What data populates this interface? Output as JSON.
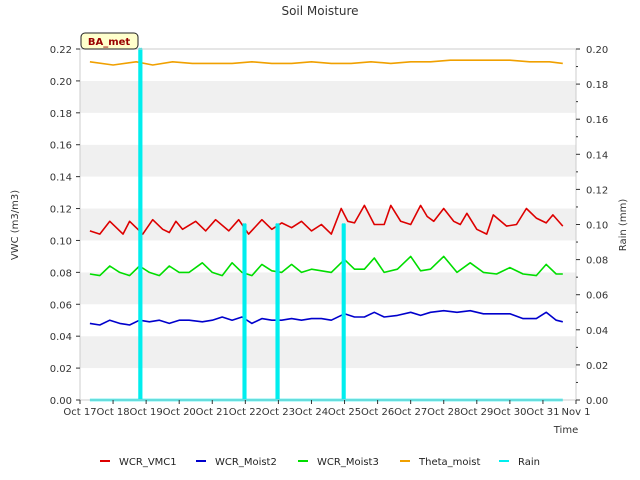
{
  "chart_data": {
    "type": "line",
    "title": "Soil Moisture",
    "badge": "BA_met",
    "xlabel": "Time",
    "ylabel": "VWC (m3/m3)",
    "y2label": "Rain (mm)",
    "x_ticks": [
      "Oct 17",
      "Oct 18",
      "Oct 19",
      "Oct 20",
      "Oct 21",
      "Oct 22",
      "Oct 23",
      "Oct 24",
      "Oct 25",
      "Oct 26",
      "Oct 27",
      "Oct 28",
      "Oct 29",
      "Oct 30",
      "Oct 31",
      "Nov 1"
    ],
    "x_range_days": [
      0,
      15
    ],
    "ylim": [
      0,
      0.22
    ],
    "y_ticks": [
      "0.00",
      "0.02",
      "0.04",
      "0.06",
      "0.08",
      "0.10",
      "0.12",
      "0.14",
      "0.16",
      "0.18",
      "0.20",
      "0.22"
    ],
    "y2lim": [
      0,
      0.2
    ],
    "y2_ticks": [
      "0.00",
      "0.02",
      "0.04",
      "0.06",
      "0.08",
      "0.10",
      "0.12",
      "0.14",
      "0.16",
      "0.18",
      "0.20"
    ],
    "grid": "horizontal bands",
    "legend_position": "bottom",
    "series": [
      {
        "name": "WCR_VMC1",
        "axis": "left",
        "color": "#dd0000",
        "x": [
          0.3,
          0.6,
          0.9,
          1.1,
          1.3,
          1.5,
          1.7,
          1.9,
          2.2,
          2.5,
          2.7,
          2.9,
          3.1,
          3.5,
          3.8,
          4.1,
          4.5,
          4.8,
          5.1,
          5.5,
          5.8,
          6.1,
          6.4,
          6.7,
          7.0,
          7.3,
          7.6,
          7.9,
          8.1,
          8.3,
          8.6,
          8.9,
          9.2,
          9.4,
          9.7,
          10.0,
          10.3,
          10.5,
          10.7,
          11.0,
          11.3,
          11.5,
          11.7,
          12.0,
          12.3,
          12.5,
          12.9,
          13.2,
          13.5,
          13.8,
          14.1,
          14.3,
          14.6
        ],
        "y": [
          0.106,
          0.104,
          0.112,
          0.108,
          0.104,
          0.112,
          0.108,
          0.104,
          0.113,
          0.107,
          0.105,
          0.112,
          0.107,
          0.112,
          0.106,
          0.113,
          0.106,
          0.113,
          0.104,
          0.113,
          0.107,
          0.111,
          0.108,
          0.112,
          0.106,
          0.11,
          0.104,
          0.12,
          0.112,
          0.111,
          0.122,
          0.11,
          0.11,
          0.122,
          0.112,
          0.11,
          0.122,
          0.115,
          0.112,
          0.12,
          0.112,
          0.11,
          0.117,
          0.107,
          0.104,
          0.116,
          0.109,
          0.11,
          0.12,
          0.114,
          0.111,
          0.116,
          0.109
        ]
      },
      {
        "name": "WCR_Moist2",
        "axis": "left",
        "color": "#0000cc",
        "x": [
          0.3,
          0.6,
          0.9,
          1.2,
          1.5,
          1.8,
          2.1,
          2.4,
          2.7,
          3.0,
          3.3,
          3.7,
          4.0,
          4.3,
          4.6,
          4.9,
          5.2,
          5.5,
          5.8,
          6.1,
          6.4,
          6.7,
          7.0,
          7.3,
          7.6,
          8.0,
          8.3,
          8.6,
          8.9,
          9.2,
          9.6,
          10.0,
          10.3,
          10.6,
          11.0,
          11.4,
          11.8,
          12.2,
          12.6,
          13.0,
          13.4,
          13.8,
          14.1,
          14.4,
          14.6
        ],
        "y": [
          0.048,
          0.047,
          0.05,
          0.048,
          0.047,
          0.05,
          0.049,
          0.05,
          0.048,
          0.05,
          0.05,
          0.049,
          0.05,
          0.052,
          0.05,
          0.052,
          0.048,
          0.051,
          0.05,
          0.05,
          0.051,
          0.05,
          0.051,
          0.051,
          0.05,
          0.054,
          0.052,
          0.052,
          0.055,
          0.052,
          0.053,
          0.055,
          0.053,
          0.055,
          0.056,
          0.055,
          0.056,
          0.054,
          0.054,
          0.054,
          0.051,
          0.051,
          0.055,
          0.05,
          0.049
        ]
      },
      {
        "name": "WCR_Moist3",
        "axis": "left",
        "color": "#00dd00",
        "x": [
          0.3,
          0.6,
          0.9,
          1.2,
          1.5,
          1.8,
          2.1,
          2.4,
          2.7,
          3.0,
          3.3,
          3.7,
          4.0,
          4.3,
          4.6,
          4.9,
          5.2,
          5.5,
          5.8,
          6.1,
          6.4,
          6.7,
          7.0,
          7.3,
          7.6,
          8.0,
          8.3,
          8.6,
          8.9,
          9.2,
          9.6,
          10.0,
          10.3,
          10.6,
          11.0,
          11.4,
          11.8,
          12.2,
          12.6,
          13.0,
          13.4,
          13.8,
          14.1,
          14.4,
          14.6
        ],
        "y": [
          0.079,
          0.078,
          0.084,
          0.08,
          0.078,
          0.084,
          0.08,
          0.078,
          0.084,
          0.08,
          0.08,
          0.086,
          0.08,
          0.078,
          0.086,
          0.08,
          0.078,
          0.085,
          0.081,
          0.08,
          0.085,
          0.08,
          0.082,
          0.081,
          0.08,
          0.088,
          0.082,
          0.082,
          0.089,
          0.08,
          0.082,
          0.09,
          0.081,
          0.082,
          0.09,
          0.08,
          0.086,
          0.08,
          0.079,
          0.083,
          0.079,
          0.078,
          0.085,
          0.079,
          0.079
        ]
      },
      {
        "name": "Theta_moist",
        "axis": "left",
        "color": "#f0a000",
        "x": [
          0.3,
          1.0,
          1.7,
          2.2,
          2.8,
          3.4,
          4.0,
          4.6,
          5.2,
          5.8,
          6.4,
          7.0,
          7.6,
          8.2,
          8.8,
          9.4,
          10.0,
          10.6,
          11.2,
          11.8,
          12.4,
          13.0,
          13.6,
          14.2,
          14.6
        ],
        "y": [
          0.212,
          0.21,
          0.212,
          0.21,
          0.212,
          0.211,
          0.211,
          0.211,
          0.212,
          0.211,
          0.211,
          0.212,
          0.211,
          0.211,
          0.212,
          0.211,
          0.212,
          0.212,
          0.213,
          0.213,
          0.213,
          0.213,
          0.212,
          0.212,
          0.211
        ]
      },
      {
        "name": "Rain",
        "axis": "right",
        "color": "#00eeee",
        "x": [
          0.3,
          1.8,
          1.8,
          1.8,
          1.85,
          1.85,
          1.85,
          4.95,
          4.95,
          4.95,
          5.0,
          5.0,
          5.0,
          5.95,
          5.95,
          5.95,
          6.0,
          6.0,
          6.0,
          7.95,
          7.95,
          7.95,
          8.0,
          8.0,
          8.0,
          14.6
        ],
        "y": [
          0,
          0,
          0.2,
          0,
          0,
          0.2,
          0,
          0,
          0.1,
          0,
          0,
          0.1,
          0,
          0,
          0.1,
          0,
          0,
          0.1,
          0,
          0,
          0.1,
          0,
          0,
          0.1,
          0,
          0
        ]
      }
    ]
  }
}
